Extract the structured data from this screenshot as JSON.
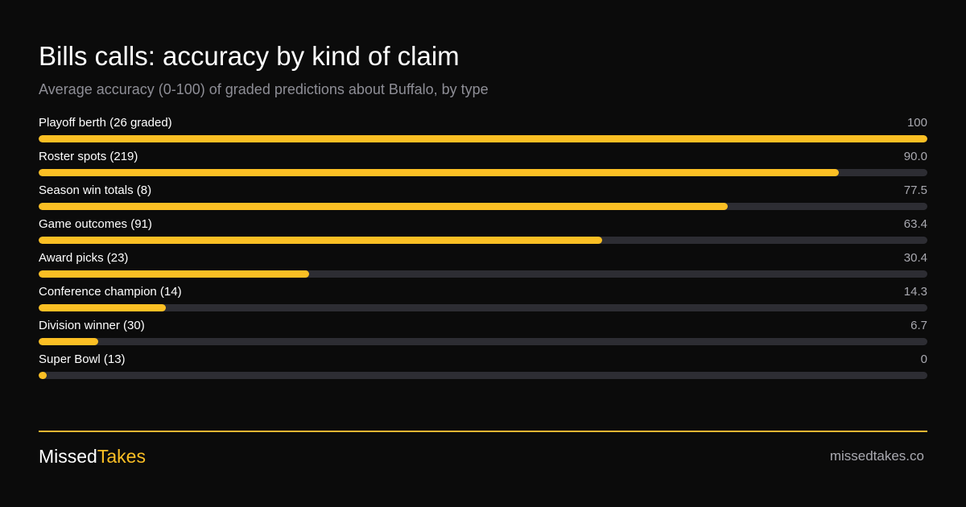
{
  "title": "Bills calls: accuracy by kind of claim",
  "subtitle": "Average accuracy (0-100) of graded predictions about Buffalo, by type",
  "colors": {
    "background": "#0b0b0b",
    "accent": "#fbbf24",
    "track": "#2d2d33",
    "muted_text": "#8e8e96"
  },
  "chart_data": {
    "type": "bar",
    "orientation": "horizontal",
    "title": "Bills calls: accuracy by kind of claim",
    "subtitle": "Average accuracy (0-100) of graded predictions about Buffalo, by type",
    "xlim": [
      0,
      100
    ],
    "grid": false,
    "categories": [
      "Playoff berth (26 graded)",
      "Roster spots (219)",
      "Season win totals (8)",
      "Game outcomes (91)",
      "Award picks (23)",
      "Conference champion (14)",
      "Division winner (30)",
      "Super Bowl (13)"
    ],
    "values": [
      100,
      90.0,
      77.5,
      63.4,
      30.4,
      14.3,
      6.7,
      0
    ],
    "value_labels": [
      "100",
      "90.0",
      "77.5",
      "63.4",
      "30.4",
      "14.3",
      "6.7",
      "0"
    ]
  },
  "footer": {
    "brand_part1": "Missed",
    "brand_part2": "Takes",
    "site": "missedtakes.co"
  }
}
